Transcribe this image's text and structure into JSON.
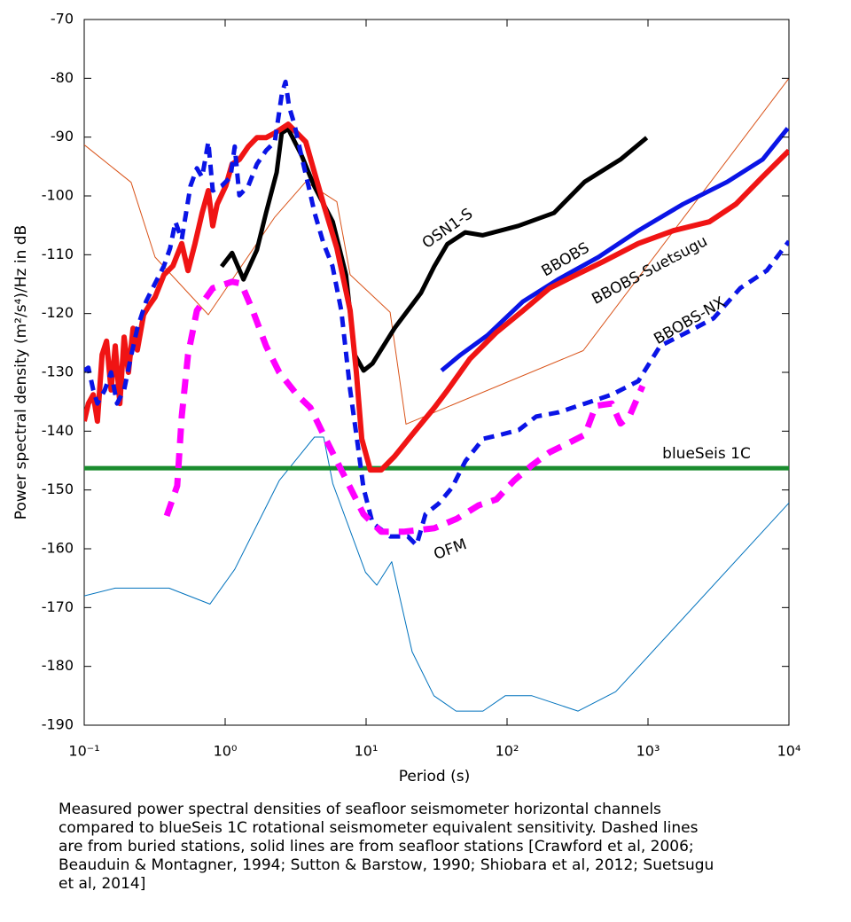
{
  "chart_data": {
    "type": "line",
    "ylabel": "Power spectral density (m²/s⁴)/Hz in dB",
    "xlabel": "Period (s)",
    "xscale": "log",
    "xlim": [
      0.1,
      10000
    ],
    "ylim": [
      -190,
      -70
    ],
    "xticks": [
      {
        "value": 0.1,
        "label": "10⁻¹"
      },
      {
        "value": 1,
        "label": "10⁰"
      },
      {
        "value": 10,
        "label": "10¹"
      },
      {
        "value": 100,
        "label": "10²"
      },
      {
        "value": 1000,
        "label": "10³"
      },
      {
        "value": 10000,
        "label": "10⁴"
      }
    ],
    "yticks": [
      -190,
      -180,
      -170,
      -160,
      -150,
      -140,
      -130,
      -120,
      -110,
      -100,
      -90,
      -80,
      -70
    ],
    "grid": false,
    "series": [
      {
        "color": "#d95319",
        "linestyle": "solid",
        "linewidth": 1,
        "x": [
          0.1,
          0.215,
          0.318,
          0.76,
          2.25,
          3.73,
          6.2,
          7.7,
          14.8,
          19.2,
          347,
          10000
        ],
        "values": [
          -91.3,
          -97.7,
          -110.4,
          -120.2,
          -103.6,
          -97.6,
          -101,
          -113.4,
          -119.8,
          -138.8,
          -126.3,
          -80
        ]
      },
      {
        "color": "#0072bd",
        "linestyle": "solid",
        "linewidth": 1,
        "x": [
          0.1,
          0.166,
          0.4,
          0.78,
          1.17,
          2.42,
          4.3,
          5.0,
          5.8,
          9.9,
          11.9,
          15.2,
          21.2,
          30.3,
          43.5,
          67.4,
          97,
          150,
          319,
          590,
          10000
        ],
        "values": [
          -168,
          -166.7,
          -166.7,
          -169.4,
          -163.5,
          -148.4,
          -141,
          -141,
          -148.9,
          -164,
          -166.2,
          -162.2,
          -177.5,
          -185,
          -187.6,
          -187.6,
          -185,
          -185,
          -187.6,
          -184.3,
          -152.2
        ]
      },
      {
        "name": "blueSeis 1C",
        "color": "#1a8c2e",
        "linestyle": "solid",
        "linewidth": 5,
        "x": [
          0.1,
          10000
        ],
        "values": [
          -146.3,
          -146.3
        ]
      },
      {
        "name": "OSN1-S",
        "color": "#000000",
        "linestyle": "solid",
        "linewidth": 5,
        "x": [
          0.944,
          1.12,
          1.35,
          1.68,
          1.95,
          2.32,
          2.52,
          2.8,
          3.47,
          4.3,
          5.8,
          7.2,
          8.3,
          9.6,
          11.1,
          15.9,
          24.5,
          30.4,
          37.7,
          50.5,
          67,
          120,
          215,
          355,
          637,
          980
        ],
        "values": [
          -112,
          -109.7,
          -114.2,
          -109.2,
          -102.9,
          -96,
          -89.3,
          -88.6,
          -93,
          -98.4,
          -104.4,
          -113.4,
          -127,
          -129.7,
          -128.5,
          -122.5,
          -116.5,
          -112,
          -108.2,
          -106.2,
          -106.7,
          -105.1,
          -102.9,
          -97.6,
          -93.8,
          -90.1
        ]
      },
      {
        "name": "BBOBS",
        "color": "#0a14e6",
        "linestyle": "solid",
        "linewidth": 5,
        "x": [
          34.3,
          46.9,
          72.6,
          129,
          230,
          445,
          854,
          1770,
          3650,
          6500,
          9800
        ],
        "values": [
          -129.7,
          -127,
          -123.7,
          -118,
          -114.2,
          -110.4,
          -105.9,
          -101.4,
          -97.6,
          -93.8,
          -88.5
        ]
      },
      {
        "name": "BBOBS-Suetsugu",
        "color": "#f01414",
        "linestyle": "solid",
        "linewidth": 6,
        "x": [
          0.1,
          0.107,
          0.116,
          0.124,
          0.134,
          0.144,
          0.155,
          0.166,
          0.179,
          0.192,
          0.206,
          0.222,
          0.238,
          0.264,
          0.288,
          0.318,
          0.368,
          0.426,
          0.492,
          0.545,
          0.611,
          0.686,
          0.76,
          0.817,
          0.878,
          1.01,
          1.12,
          1.26,
          1.46,
          1.68,
          1.95,
          2.25,
          2.53,
          2.8,
          3.23,
          3.73,
          4.31,
          4.99,
          6.2,
          7.7,
          8.53,
          9.31,
          10.7,
          12.8,
          15.9,
          21.2,
          30.5,
          37.9,
          54.5,
          84.1,
          130,
          200,
          310,
          478,
          853,
          1520,
          2720,
          4200,
          6470,
          10000
        ],
        "values": [
          -138.3,
          -135.3,
          -133.8,
          -138.3,
          -127,
          -124.7,
          -133,
          -125.5,
          -135.3,
          -124,
          -130,
          -122.5,
          -126.2,
          -120.2,
          -118.7,
          -117.2,
          -113.4,
          -111.9,
          -108.1,
          -112.7,
          -108.1,
          -102.9,
          -99.1,
          -105.1,
          -101.4,
          -98.3,
          -94.6,
          -93.8,
          -91.6,
          -90.1,
          -90.1,
          -89.3,
          -88.5,
          -87.8,
          -89.3,
          -90.8,
          -96.1,
          -101.4,
          -108.9,
          -119.5,
          -130,
          -141.3,
          -146.6,
          -146.6,
          -144.3,
          -140.6,
          -136,
          -133,
          -127.7,
          -123.2,
          -119.5,
          -115.7,
          -113.4,
          -111.2,
          -108.1,
          -105.9,
          -104.4,
          -101.4,
          -96.8,
          -92.3
        ]
      },
      {
        "name": "BBOBS-NX",
        "color": "#0a14e6",
        "linestyle": "dashed",
        "linewidth": 5,
        "x": [
          0.1,
          0.107,
          0.116,
          0.124,
          0.14,
          0.155,
          0.171,
          0.192,
          0.216,
          0.238,
          0.275,
          0.318,
          0.368,
          0.407,
          0.444,
          0.492,
          0.528,
          0.568,
          0.63,
          0.686,
          0.76,
          0.817,
          0.944,
          1.09,
          1.17,
          1.26,
          1.46,
          1.68,
          1.95,
          2.25,
          2.53,
          2.68,
          2.84,
          3.1,
          3.47,
          3.9,
          4.31,
          4.99,
          5.77,
          6.67,
          7.7,
          8.53,
          9.58,
          11.1,
          14.8,
          19.8,
          22.8,
          26.4,
          32.8,
          40.7,
          50.6,
          67.6,
          90.4,
          121,
          161,
          232,
          357,
          552,
          853,
          1220,
          1890,
          2920,
          4510,
          6960,
          10000
        ],
        "values": [
          -129.7,
          -129.2,
          -133,
          -135.3,
          -133,
          -130,
          -135.3,
          -133,
          -127,
          -122.5,
          -117.9,
          -114.9,
          -111.9,
          -108.9,
          -104.4,
          -107.4,
          -102.9,
          -98.3,
          -95.3,
          -96.8,
          -90.8,
          -99.1,
          -98.3,
          -96.8,
          -91.6,
          -99.9,
          -98.3,
          -94.6,
          -92.3,
          -90.8,
          -82.5,
          -80.6,
          -84.8,
          -87.8,
          -93.1,
          -98.3,
          -102.9,
          -108.1,
          -111.9,
          -119.5,
          -133,
          -140.6,
          -149.6,
          -155.6,
          -157.9,
          -157.9,
          -159.4,
          -154.1,
          -152.3,
          -149.6,
          -145.1,
          -141.3,
          -140.6,
          -139.8,
          -137.5,
          -136.8,
          -135.3,
          -133.8,
          -131.5,
          -125.5,
          -123.2,
          -120.8,
          -115.7,
          -112.7,
          -107.7
        ]
      },
      {
        "name": "OFM",
        "color": "#ff00ff",
        "linestyle": "dashed",
        "linewidth": 7,
        "x": [
          0.385,
          0.457,
          0.492,
          0.545,
          0.63,
          0.817,
          1.12,
          1.3,
          1.57,
          1.95,
          2.42,
          3.23,
          4.02,
          4.99,
          6.2,
          7.7,
          9.58,
          12.8,
          18.4,
          30.5,
          43.9,
          63,
          84.1,
          112,
          150,
          200,
          268,
          357,
          426,
          552,
          638,
          738,
          916
        ],
        "values": [
          -154.4,
          -149.3,
          -137.5,
          -127,
          -119.5,
          -115.7,
          -114.6,
          -114.9,
          -119.5,
          -125.5,
          -130,
          -133.8,
          -136,
          -140.6,
          -145.1,
          -149.6,
          -154.1,
          -157.1,
          -157.1,
          -156.5,
          -154.9,
          -152.6,
          -151.6,
          -148.4,
          -145.8,
          -143.6,
          -142.1,
          -140.6,
          -135.7,
          -135.3,
          -138.7,
          -137.5,
          -132.3
        ]
      }
    ],
    "caption": [
      "Measured power spectral densities of seafloor seismometer horizontal channels",
      "compared to  blueSeis 1C rotational seismometer equivalent sensitivity. Dashed lines",
      "are from buried stations, solid lines are from seafloor stations  [Crawford et al, 2006;",
      "Beauduin & Montagner, 1994; Sutton & Barstow, 1990;  Shiobara et al, 2012;  Suetsugu",
      "et al, 2014]"
    ]
  }
}
